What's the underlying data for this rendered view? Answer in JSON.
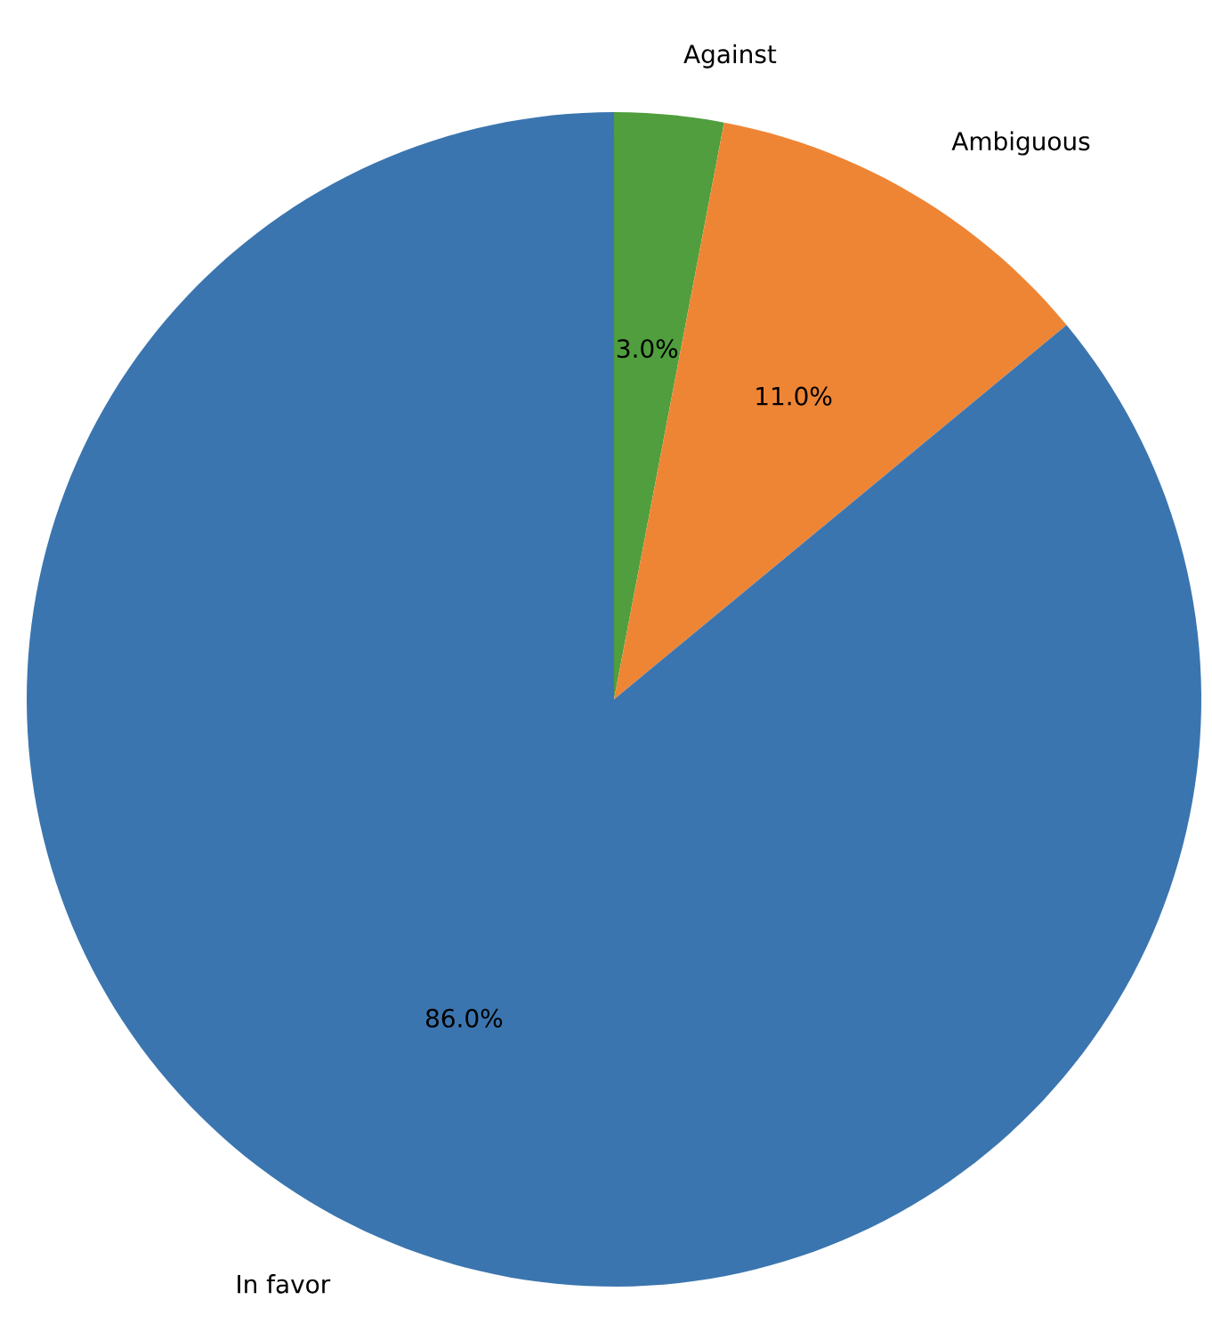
{
  "chart_data": {
    "type": "pie",
    "categories": [
      "Against",
      "Ambiguous",
      "In favor"
    ],
    "values": [
      3.0,
      11.0,
      86.0
    ],
    "colors": [
      "#509e3e",
      "#ee8535",
      "#3b75af"
    ],
    "value_labels": [
      "3.0%",
      "11.0%",
      "86.0%"
    ]
  }
}
